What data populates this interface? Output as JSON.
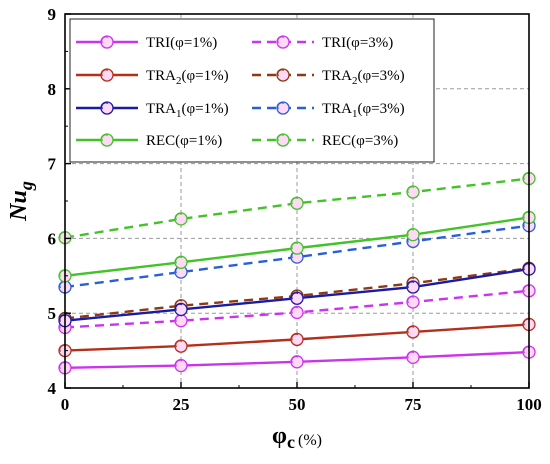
{
  "chart_data": {
    "type": "line",
    "x": [
      0,
      25,
      50,
      75,
      100
    ],
    "xlim": [
      0,
      100
    ],
    "ylim": [
      4,
      9
    ],
    "xticks": [
      "0",
      "25",
      "50",
      "75",
      "100"
    ],
    "yticks": [
      "4",
      "5",
      "6",
      "7",
      "8",
      "9"
    ],
    "xlabel": {
      "main": "φ",
      "sub": "c",
      "unit": "(%)"
    },
    "ylabel": {
      "main": "Nu",
      "sub": "g"
    },
    "grid": true,
    "legend_position": "top-left",
    "series": [
      {
        "name": "TRI(φ=1%)",
        "values": [
          4.27,
          4.3,
          4.35,
          4.41,
          4.48
        ],
        "color": "#cc33ee",
        "dash": "solid",
        "legend_parts": [
          {
            "t": "TRI(φ=1%)"
          }
        ]
      },
      {
        "name": "TRI(φ=3%)",
        "values": [
          4.81,
          4.9,
          5.01,
          5.15,
          5.3
        ],
        "color": "#cc33ee",
        "dash": "dashed",
        "legend_parts": [
          {
            "t": "TRI(φ=3%)"
          }
        ]
      },
      {
        "name": "TRA2(φ=1%)",
        "values": [
          4.5,
          4.56,
          4.65,
          4.75,
          4.85
        ],
        "color": "#b5301c",
        "dash": "solid",
        "legend_parts": [
          {
            "t": "TRA"
          },
          {
            "t": "2",
            "sub": true
          },
          {
            "t": "(φ=1%)"
          }
        ]
      },
      {
        "name": "TRA2(φ=3%)",
        "values": [
          4.93,
          5.1,
          5.23,
          5.4,
          5.6
        ],
        "color": "#8b3a12",
        "dash": "dashed",
        "legend_parts": [
          {
            "t": "TRA"
          },
          {
            "t": "2",
            "sub": true
          },
          {
            "t": "(φ=3%)"
          }
        ]
      },
      {
        "name": "TRA1(φ=1%)",
        "values": [
          4.9,
          5.05,
          5.2,
          5.35,
          5.59
        ],
        "color": "#1a1aa6",
        "dash": "solid",
        "legend_parts": [
          {
            "t": "TRA"
          },
          {
            "t": "1",
            "sub": true
          },
          {
            "t": "(φ=1%)"
          }
        ]
      },
      {
        "name": "TRA1(φ=3%)",
        "values": [
          5.35,
          5.55,
          5.75,
          5.96,
          6.17
        ],
        "color": "#2a5fd6",
        "dash": "dashed",
        "legend_parts": [
          {
            "t": "TRA"
          },
          {
            "t": "1",
            "sub": true
          },
          {
            "t": "(φ=3%)"
          }
        ]
      },
      {
        "name": "REC(φ=1%)",
        "values": [
          5.5,
          5.68,
          5.87,
          6.05,
          6.28
        ],
        "color": "#44c22a",
        "dash": "solid",
        "legend_parts": [
          {
            "t": "REC(φ=1%)"
          }
        ]
      },
      {
        "name": "REC(φ=3%)",
        "values": [
          6.01,
          6.26,
          6.47,
          6.62,
          6.8
        ],
        "color": "#44c22a",
        "dash": "dashed",
        "legend_parts": [
          {
            "t": "REC(φ=3%)"
          }
        ]
      }
    ]
  }
}
